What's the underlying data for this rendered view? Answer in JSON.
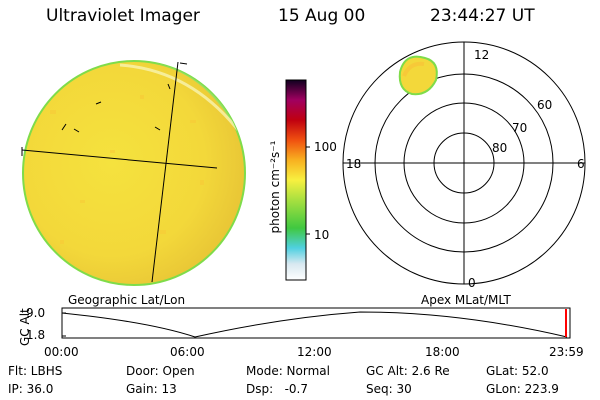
{
  "header": {
    "instrument": "Ultraviolet Imager",
    "date": "15 Aug 00",
    "time": "23:44:27 UT"
  },
  "colorbar": {
    "unit_label": "photon cm⁻²s⁻¹",
    "ticks": [
      "100",
      "10"
    ]
  },
  "polar_plot": {
    "mlt_labels": {
      "top": "12",
      "right": "6",
      "bottom": "0",
      "left": "18"
    },
    "lat_labels": [
      "60",
      "70",
      "80"
    ]
  },
  "panel_labels": {
    "left": "Geographic Lat/Lon",
    "right": "Apex MLat/MLT"
  },
  "altitude_plot": {
    "axis_label": "GC Alt",
    "y_ticks": [
      "9.0",
      "1.8"
    ],
    "x_ticks": [
      "00:00",
      "06:00",
      "12:00",
      "18:00",
      "23:59"
    ]
  },
  "info": {
    "filter": "Flt: LBHS",
    "door": "Door: Open",
    "mode": "Mode: Normal",
    "gc_alt": "GC Alt: 2.6 Re",
    "glat": "GLat: 52.0",
    "ip": "IP: 36.0",
    "gain": "Gain: 13",
    "dsp": "Dsp:   -0.7",
    "seq": "Seq: 30",
    "glon": "GLon: 223.9"
  },
  "colors": {
    "earth_fill": "#f2e03a",
    "earth_rim": "#7fdc4a",
    "marker": "#ff0000"
  }
}
